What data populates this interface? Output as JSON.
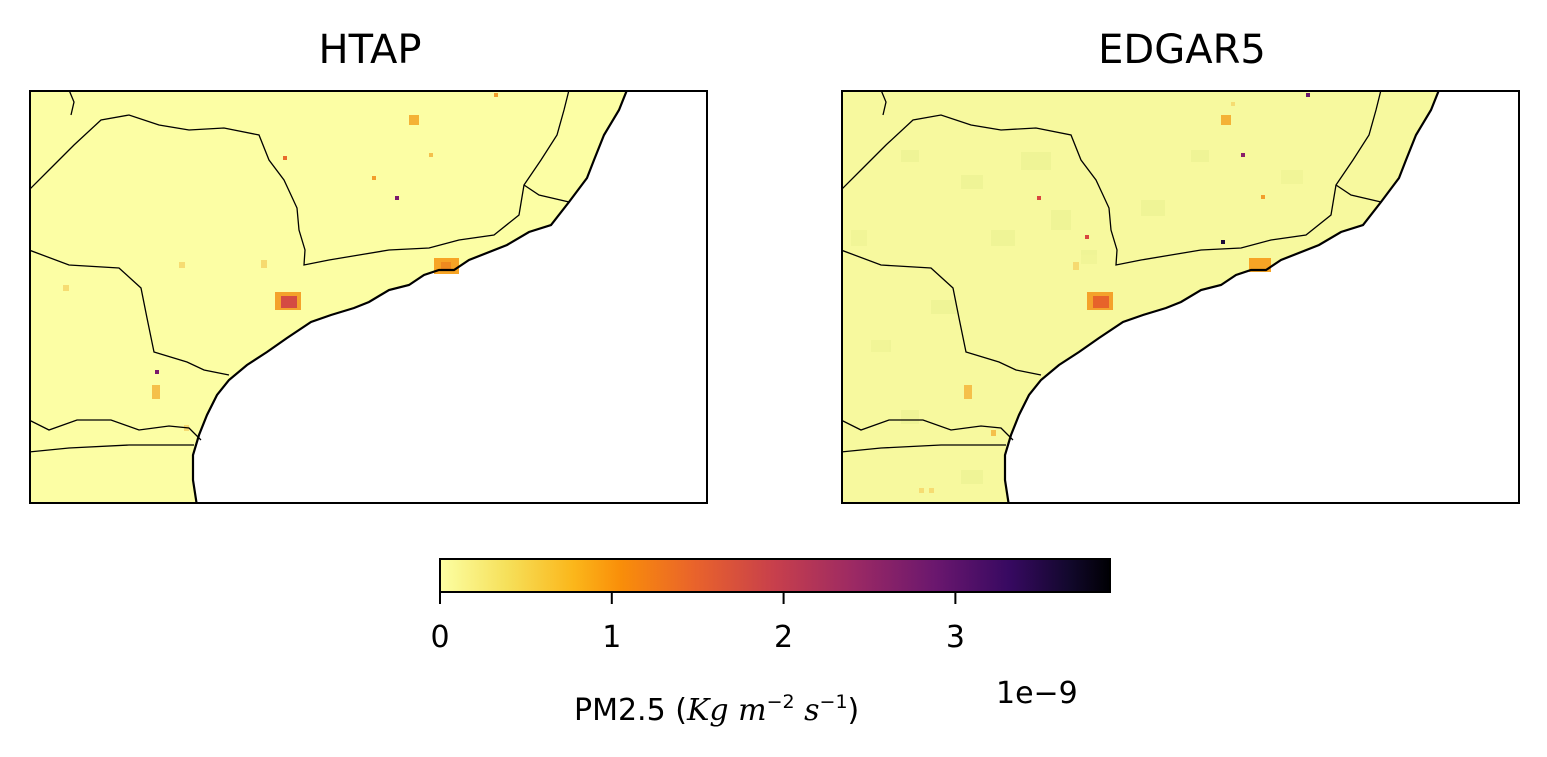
{
  "panels": [
    {
      "title": "HTAP"
    },
    {
      "title": "EDGAR5"
    }
  ],
  "colorbar": {
    "colormap": "inferno_r",
    "ticks": [
      "0",
      "1",
      "2",
      "3"
    ],
    "tick_values": [
      0,
      1,
      2,
      3
    ],
    "vmin": 0,
    "vmax": 3.9,
    "label_prefix": "PM2.5 (",
    "unit_kg": "Kg",
    "unit_m": "m",
    "unit_m_exp": "−2",
    "unit_s": "s",
    "unit_s_exp": "−1",
    "label_suffix": ")",
    "exponent": "1e−9"
  },
  "colors": {
    "background_land": "#fcfea4",
    "ocean": "#ffffff",
    "boundary": "#000000"
  }
}
